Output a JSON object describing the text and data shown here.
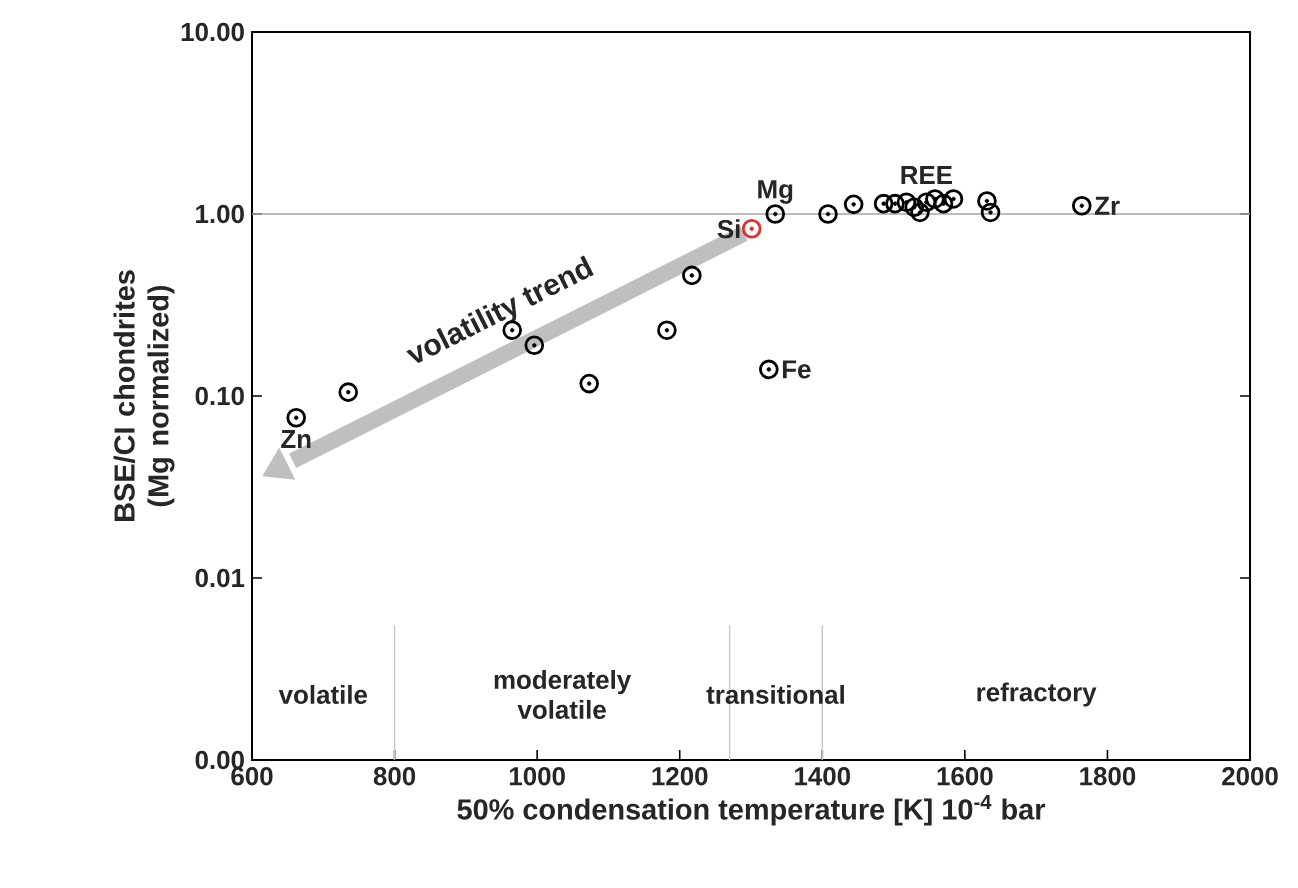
{
  "chart_data": {
    "type": "scatter",
    "xlabel": "50% condensation temperature [K] 10$^{-4}$ bar",
    "ylabel": "BSE/CI chondrites (Mg normalized)",
    "log": "y",
    "xlim": [
      600,
      2000
    ],
    "xticks": [
      600,
      800,
      1000,
      1200,
      1400,
      1600,
      1800,
      2000
    ],
    "ylim": [
      0.001,
      10
    ],
    "yticks": [
      {
        "value": 0.001,
        "label": "0.00"
      },
      0.01,
      {
        "value": 0.1,
        "label": "0.10"
      },
      {
        "value": 1,
        "label": "1.00"
      },
      {
        "value": 10,
        "label": "10.00"
      }
    ],
    "series": [
      {
        "marker": "circle",
        "x": [
          662,
          735,
          965,
          996,
          1073,
          1182,
          1217,
          1301,
          1334,
          1325,
          1408,
          1444,
          1486,
          1502,
          1518,
          1529,
          1537,
          1546,
          1558,
          1570,
          1584,
          1631,
          1636,
          1764
        ],
        "values": [
          0.076,
          0.105,
          0.23,
          0.19,
          0.117,
          0.23,
          0.46,
          0.83,
          1.0,
          0.14,
          1.0,
          1.13,
          1.14,
          1.14,
          1.16,
          1.09,
          1.02,
          1.16,
          1.21,
          1.14,
          1.21,
          1.18,
          1.02,
          1.11
        ],
        "colors": [
          "#000000",
          "#000000",
          "#000000",
          "#000000",
          "#000000",
          "#000000",
          "#000000",
          "#e03030",
          "#000000",
          "#000000",
          "#000000",
          "#000000",
          "#000000",
          "#000000",
          "#000000",
          "#000000",
          "#000000",
          "#000000",
          "#000000",
          "#000000",
          "#000000",
          "#000000",
          "#000000",
          "#000000"
        ]
      },
      {
        "type": "line",
        "marker": "none",
        "name": "volatility trend",
        "color": "#bfbfbf",
        "x": [
          1290,
          657
        ],
        "values": [
          0.78,
          0.044
        ]
      }
    ],
    "ref_lines": [
      {
        "axis": "y",
        "value": 1,
        "color": "#a6a6a6"
      },
      {
        "axis": "x",
        "value": 800,
        "color": "#c8c8c8"
      },
      {
        "axis": "x",
        "value": 1270,
        "color": "#c8c8c8"
      },
      {
        "axis": "x",
        "value": 1400,
        "color": "#c8c8c8"
      }
    ],
    "annotations": [
      {
        "text": "Zn",
        "x": 662,
        "y": 0.076
      },
      {
        "text": "Si",
        "x": 1301,
        "y": 0.83
      },
      {
        "text": "Mg",
        "x": 1334,
        "y": 1.0
      },
      {
        "text": "Fe",
        "x": 1325,
        "y": 0.14
      },
      {
        "text": "REE",
        "x": 1546,
        "y": 1.16
      },
      {
        "text": "Zr",
        "x": 1764,
        "y": 1.11
      },
      "volatile",
      "moderately volatile",
      "transitional",
      "refractory"
    ]
  }
}
